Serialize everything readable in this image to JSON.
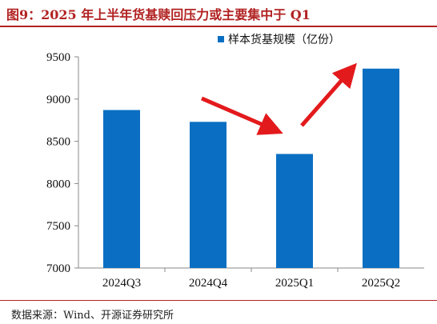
{
  "title": "图9：2025 年上半年货基赎回压力或主要集中于 Q1",
  "source": "数据来源：Wind、开源证券研究所",
  "chart_data": {
    "type": "bar",
    "categories": [
      "2024Q3",
      "2024Q4",
      "2025Q1",
      "2025Q2"
    ],
    "series": [
      {
        "name": "样本货基规模（亿份）",
        "values": [
          8870,
          8730,
          8350,
          9360
        ],
        "color": "#0a6fc2"
      }
    ],
    "ylim": [
      7000,
      9500
    ],
    "yticks": [
      7000,
      7500,
      8000,
      8500,
      9000,
      9500
    ],
    "legend_position": "top-right",
    "grid": false,
    "annotations": [
      {
        "type": "arrow",
        "color": "#e31a1c",
        "meaning": "decline into 2025Q1"
      },
      {
        "type": "arrow",
        "color": "#e31a1c",
        "meaning": "rebound into 2025Q2"
      }
    ]
  }
}
